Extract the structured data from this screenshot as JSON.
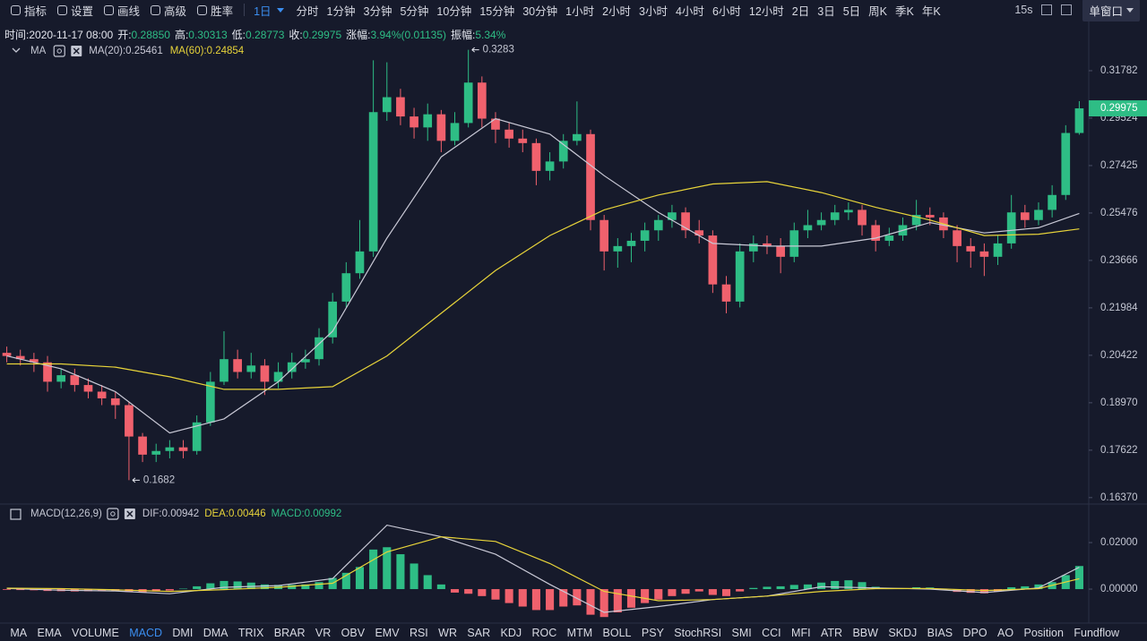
{
  "toolbar": {
    "tools": [
      "指标",
      "设置",
      "画线",
      "高级",
      "胜率"
    ],
    "intervals": [
      "1日",
      "分时",
      "1分钟",
      "3分钟",
      "5分钟",
      "10分钟",
      "15分钟",
      "30分钟",
      "1小时",
      "2小时",
      "3小时",
      "4小时",
      "6小时",
      "12小时",
      "2日",
      "3日",
      "5日",
      "周K",
      "季K",
      "年K"
    ],
    "refresh": "15s",
    "window_button": "单窗口"
  },
  "info": [
    {
      "label": "时间:",
      "value": "2020-11-17 08:00"
    },
    {
      "label": "开:",
      "value": "0.28850"
    },
    {
      "label": "高:",
      "value": "0.30313"
    },
    {
      "label": "低:",
      "value": "0.28773"
    },
    {
      "label": "收:",
      "value": "0.29975"
    },
    {
      "label": "涨幅:",
      "value": "3.94%(0.01135)"
    },
    {
      "label": "振幅:",
      "value": "5.34%"
    }
  ],
  "indicator_tabs": {
    "items": [
      "MA",
      "EMA",
      "VOLUME",
      "MACD",
      "DMI",
      "DMA",
      "TRIX",
      "BRAR",
      "VR",
      "OBV",
      "EMV",
      "RSI",
      "WR",
      "SAR",
      "KDJ",
      "ROC",
      "MTM",
      "BOLL",
      "PSY",
      "StochRSI",
      "SMI",
      "CCI",
      "MFI",
      "ATR",
      "BBW",
      "SKDJ",
      "BIAS",
      "DPO",
      "AO",
      "Position",
      "Fundflow"
    ],
    "active": 3
  },
  "chart_data": [
    {
      "type": "candlestick",
      "legend_title": "MA",
      "log_scale": true,
      "grid": false,
      "up_color": "#2ebd85",
      "down_color": "#f0616d",
      "open": [
        0.205,
        0.204,
        0.203,
        0.202,
        0.196,
        0.198,
        0.195,
        0.193,
        0.191,
        0.189,
        0.18,
        0.175,
        0.176,
        0.177,
        0.176,
        0.184,
        0.196,
        0.203,
        0.199,
        0.201,
        0.196,
        0.199,
        0.202,
        0.203,
        0.21,
        0.222,
        0.232,
        0.24,
        0.298,
        0.305,
        0.296,
        0.291,
        0.297,
        0.285,
        0.293,
        0.312,
        0.295,
        0.29,
        0.286,
        0.284,
        0.272,
        0.276,
        0.285,
        0.288,
        0.252,
        0.24,
        0.242,
        0.244,
        0.248,
        0.252,
        0.255,
        0.248,
        0.246,
        0.228,
        0.222,
        0.24,
        0.243,
        0.242,
        0.238,
        0.248,
        0.25,
        0.252,
        0.255,
        0.256,
        0.25,
        0.244,
        0.246,
        0.25,
        0.254,
        0.253,
        0.248,
        0.242,
        0.24,
        0.238,
        0.243,
        0.255,
        0.252,
        0.256,
        0.262,
        0.2885
      ],
      "high": [
        0.207,
        0.206,
        0.205,
        0.204,
        0.2,
        0.2,
        0.197,
        0.195,
        0.193,
        0.19,
        0.181,
        0.178,
        0.179,
        0.179,
        0.186,
        0.199,
        0.212,
        0.206,
        0.205,
        0.203,
        0.202,
        0.205,
        0.206,
        0.213,
        0.225,
        0.236,
        0.252,
        0.323,
        0.322,
        0.309,
        0.3,
        0.302,
        0.299,
        0.298,
        0.3283,
        0.315,
        0.298,
        0.293,
        0.29,
        0.286,
        0.28,
        0.288,
        0.303,
        0.29,
        0.254,
        0.245,
        0.247,
        0.251,
        0.254,
        0.258,
        0.257,
        0.252,
        0.248,
        0.231,
        0.243,
        0.246,
        0.246,
        0.245,
        0.251,
        0.256,
        0.255,
        0.258,
        0.259,
        0.258,
        0.252,
        0.249,
        0.253,
        0.26,
        0.257,
        0.255,
        0.25,
        0.245,
        0.243,
        0.246,
        0.262,
        0.258,
        0.259,
        0.266,
        0.292,
        0.30313
      ],
      "low": [
        0.202,
        0.201,
        0.199,
        0.193,
        0.194,
        0.193,
        0.191,
        0.189,
        0.185,
        0.1682,
        0.173,
        0.173,
        0.174,
        0.174,
        0.175,
        0.183,
        0.195,
        0.197,
        0.197,
        0.192,
        0.194,
        0.197,
        0.2,
        0.201,
        0.208,
        0.22,
        0.23,
        0.238,
        0.294,
        0.292,
        0.286,
        0.285,
        0.28,
        0.283,
        0.291,
        0.291,
        0.284,
        0.282,
        0.28,
        0.266,
        0.268,
        0.273,
        0.283,
        0.248,
        0.233,
        0.234,
        0.236,
        0.24,
        0.244,
        0.249,
        0.245,
        0.243,
        0.225,
        0.218,
        0.22,
        0.236,
        0.239,
        0.232,
        0.236,
        0.245,
        0.248,
        0.25,
        0.252,
        0.246,
        0.24,
        0.242,
        0.244,
        0.248,
        0.25,
        0.245,
        0.236,
        0.234,
        0.231,
        0.235,
        0.241,
        0.249,
        0.25,
        0.253,
        0.26,
        0.28773
      ],
      "close": [
        0.204,
        0.203,
        0.202,
        0.196,
        0.198,
        0.195,
        0.193,
        0.191,
        0.189,
        0.18,
        0.175,
        0.176,
        0.177,
        0.176,
        0.184,
        0.196,
        0.203,
        0.199,
        0.201,
        0.196,
        0.199,
        0.202,
        0.203,
        0.21,
        0.222,
        0.232,
        0.24,
        0.298,
        0.305,
        0.296,
        0.291,
        0.297,
        0.285,
        0.293,
        0.312,
        0.295,
        0.29,
        0.286,
        0.284,
        0.272,
        0.276,
        0.285,
        0.288,
        0.252,
        0.24,
        0.242,
        0.244,
        0.248,
        0.252,
        0.255,
        0.248,
        0.246,
        0.228,
        0.222,
        0.24,
        0.243,
        0.242,
        0.238,
        0.248,
        0.25,
        0.252,
        0.255,
        0.256,
        0.25,
        0.244,
        0.246,
        0.25,
        0.254,
        0.253,
        0.248,
        0.242,
        0.24,
        0.238,
        0.243,
        0.255,
        0.252,
        0.256,
        0.262,
        0.2885,
        0.29975
      ],
      "series": [
        {
          "name": "MA(20):0.25461",
          "color": "#c9c9d6",
          "x": [
            0,
            4,
            8,
            12,
            16,
            20,
            24,
            28,
            32,
            36,
            40,
            44,
            48,
            52,
            56,
            60,
            64,
            68,
            72,
            76,
            79
          ],
          "values": [
            0.204,
            0.2,
            0.193,
            0.181,
            0.185,
            0.196,
            0.212,
            0.245,
            0.278,
            0.295,
            0.288,
            0.27,
            0.255,
            0.243,
            0.242,
            0.242,
            0.245,
            0.251,
            0.247,
            0.249,
            0.25461
          ]
        },
        {
          "name": "MA(60):0.24854",
          "color": "#e8d43a",
          "x": [
            0,
            4,
            8,
            12,
            16,
            20,
            24,
            28,
            32,
            36,
            40,
            44,
            48,
            52,
            56,
            60,
            64,
            68,
            72,
            76,
            79
          ],
          "values": [
            0.2015,
            0.2015,
            0.2005,
            0.1975,
            0.1937,
            0.1937,
            0.1945,
            0.204,
            0.218,
            0.233,
            0.246,
            0.256,
            0.262,
            0.2665,
            0.2675,
            0.263,
            0.257,
            0.252,
            0.246,
            0.2465,
            0.24854
          ]
        }
      ],
      "ylim": [
        0.1623,
        0.3332
      ],
      "yticks": [
        0.31782,
        0.29524,
        0.27425,
        0.25476,
        0.23666,
        0.21984,
        0.20422,
        {
          "value": 0.1897,
          "label": "0.18970"
        },
        0.17622,
        {
          "value": 0.1637,
          "label": "0.16370"
        }
      ]
    },
    {
      "type": "macd",
      "title": "MACD(12,26,9)",
      "name": "MACD:0.00992",
      "grid": false,
      "up_color": "#2ebd85",
      "down_color": "#f0616d",
      "values": [
        -0.0003,
        -0.0004,
        -0.0005,
        -0.0008,
        -0.0009,
        -0.001,
        -0.0009,
        -0.0008,
        -0.0007,
        -0.0012,
        -0.0014,
        -0.001,
        -0.0006,
        0.0002,
        0.0012,
        0.0025,
        0.0035,
        0.0033,
        0.0028,
        0.002,
        0.0018,
        0.0018,
        0.002,
        0.003,
        0.0048,
        0.007,
        0.0095,
        0.017,
        0.018,
        0.015,
        0.011,
        0.006,
        0.002,
        -0.0015,
        -0.002,
        -0.003,
        -0.0045,
        -0.006,
        -0.0075,
        -0.009,
        -0.009,
        -0.0075,
        -0.007,
        -0.011,
        -0.012,
        -0.01,
        -0.008,
        -0.006,
        -0.0045,
        -0.003,
        -0.002,
        -0.001,
        -0.0025,
        -0.003,
        -0.001,
        0.0005,
        0.001,
        0.0012,
        0.0018,
        0.002,
        0.0028,
        0.0035,
        0.0038,
        0.003,
        0.001,
        0.0002,
        0.0004,
        0.0008,
        0.0007,
        -0.0004,
        -0.0012,
        -0.0016,
        -0.0018,
        -0.001,
        0.0008,
        0.0012,
        0.002,
        0.003,
        0.006,
        0.00992
      ],
      "series": [
        {
          "name": "DIF:0.00942",
          "color": "#c9c9d6",
          "x": [
            0,
            4,
            8,
            12,
            16,
            20,
            24,
            28,
            32,
            36,
            40,
            44,
            48,
            52,
            56,
            60,
            64,
            68,
            72,
            76,
            79
          ],
          "values": [
            0.0003,
            -0.0005,
            -0.0008,
            -0.002,
            0.0008,
            0.0015,
            0.0045,
            0.0275,
            0.0225,
            0.015,
            0.002,
            -0.01,
            -0.0075,
            -0.0045,
            -0.003,
            0.001,
            0.0005,
            0.0,
            -0.0015,
            0.0005,
            0.00942
          ]
        },
        {
          "name": "DEA:0.00446",
          "color": "#e8d43a",
          "x": [
            0,
            4,
            8,
            12,
            16,
            20,
            24,
            28,
            32,
            36,
            40,
            44,
            48,
            52,
            56,
            60,
            64,
            68,
            72,
            76,
            79
          ],
          "values": [
            0.0004,
            0.0002,
            -0.0003,
            -0.001,
            -0.0002,
            0.0008,
            0.0025,
            0.016,
            0.0225,
            0.0205,
            0.011,
            -0.001,
            -0.005,
            -0.0045,
            -0.003,
            -0.001,
            0.0002,
            0.0003,
            -0.0006,
            0.0002,
            0.00446
          ]
        }
      ],
      "ylim": [
        -0.0123,
        0.0358
      ],
      "yticks": [
        {
          "value": 0.02,
          "label": "0.02000"
        },
        {
          "value": 0,
          "label": "0.00000"
        }
      ]
    }
  ]
}
